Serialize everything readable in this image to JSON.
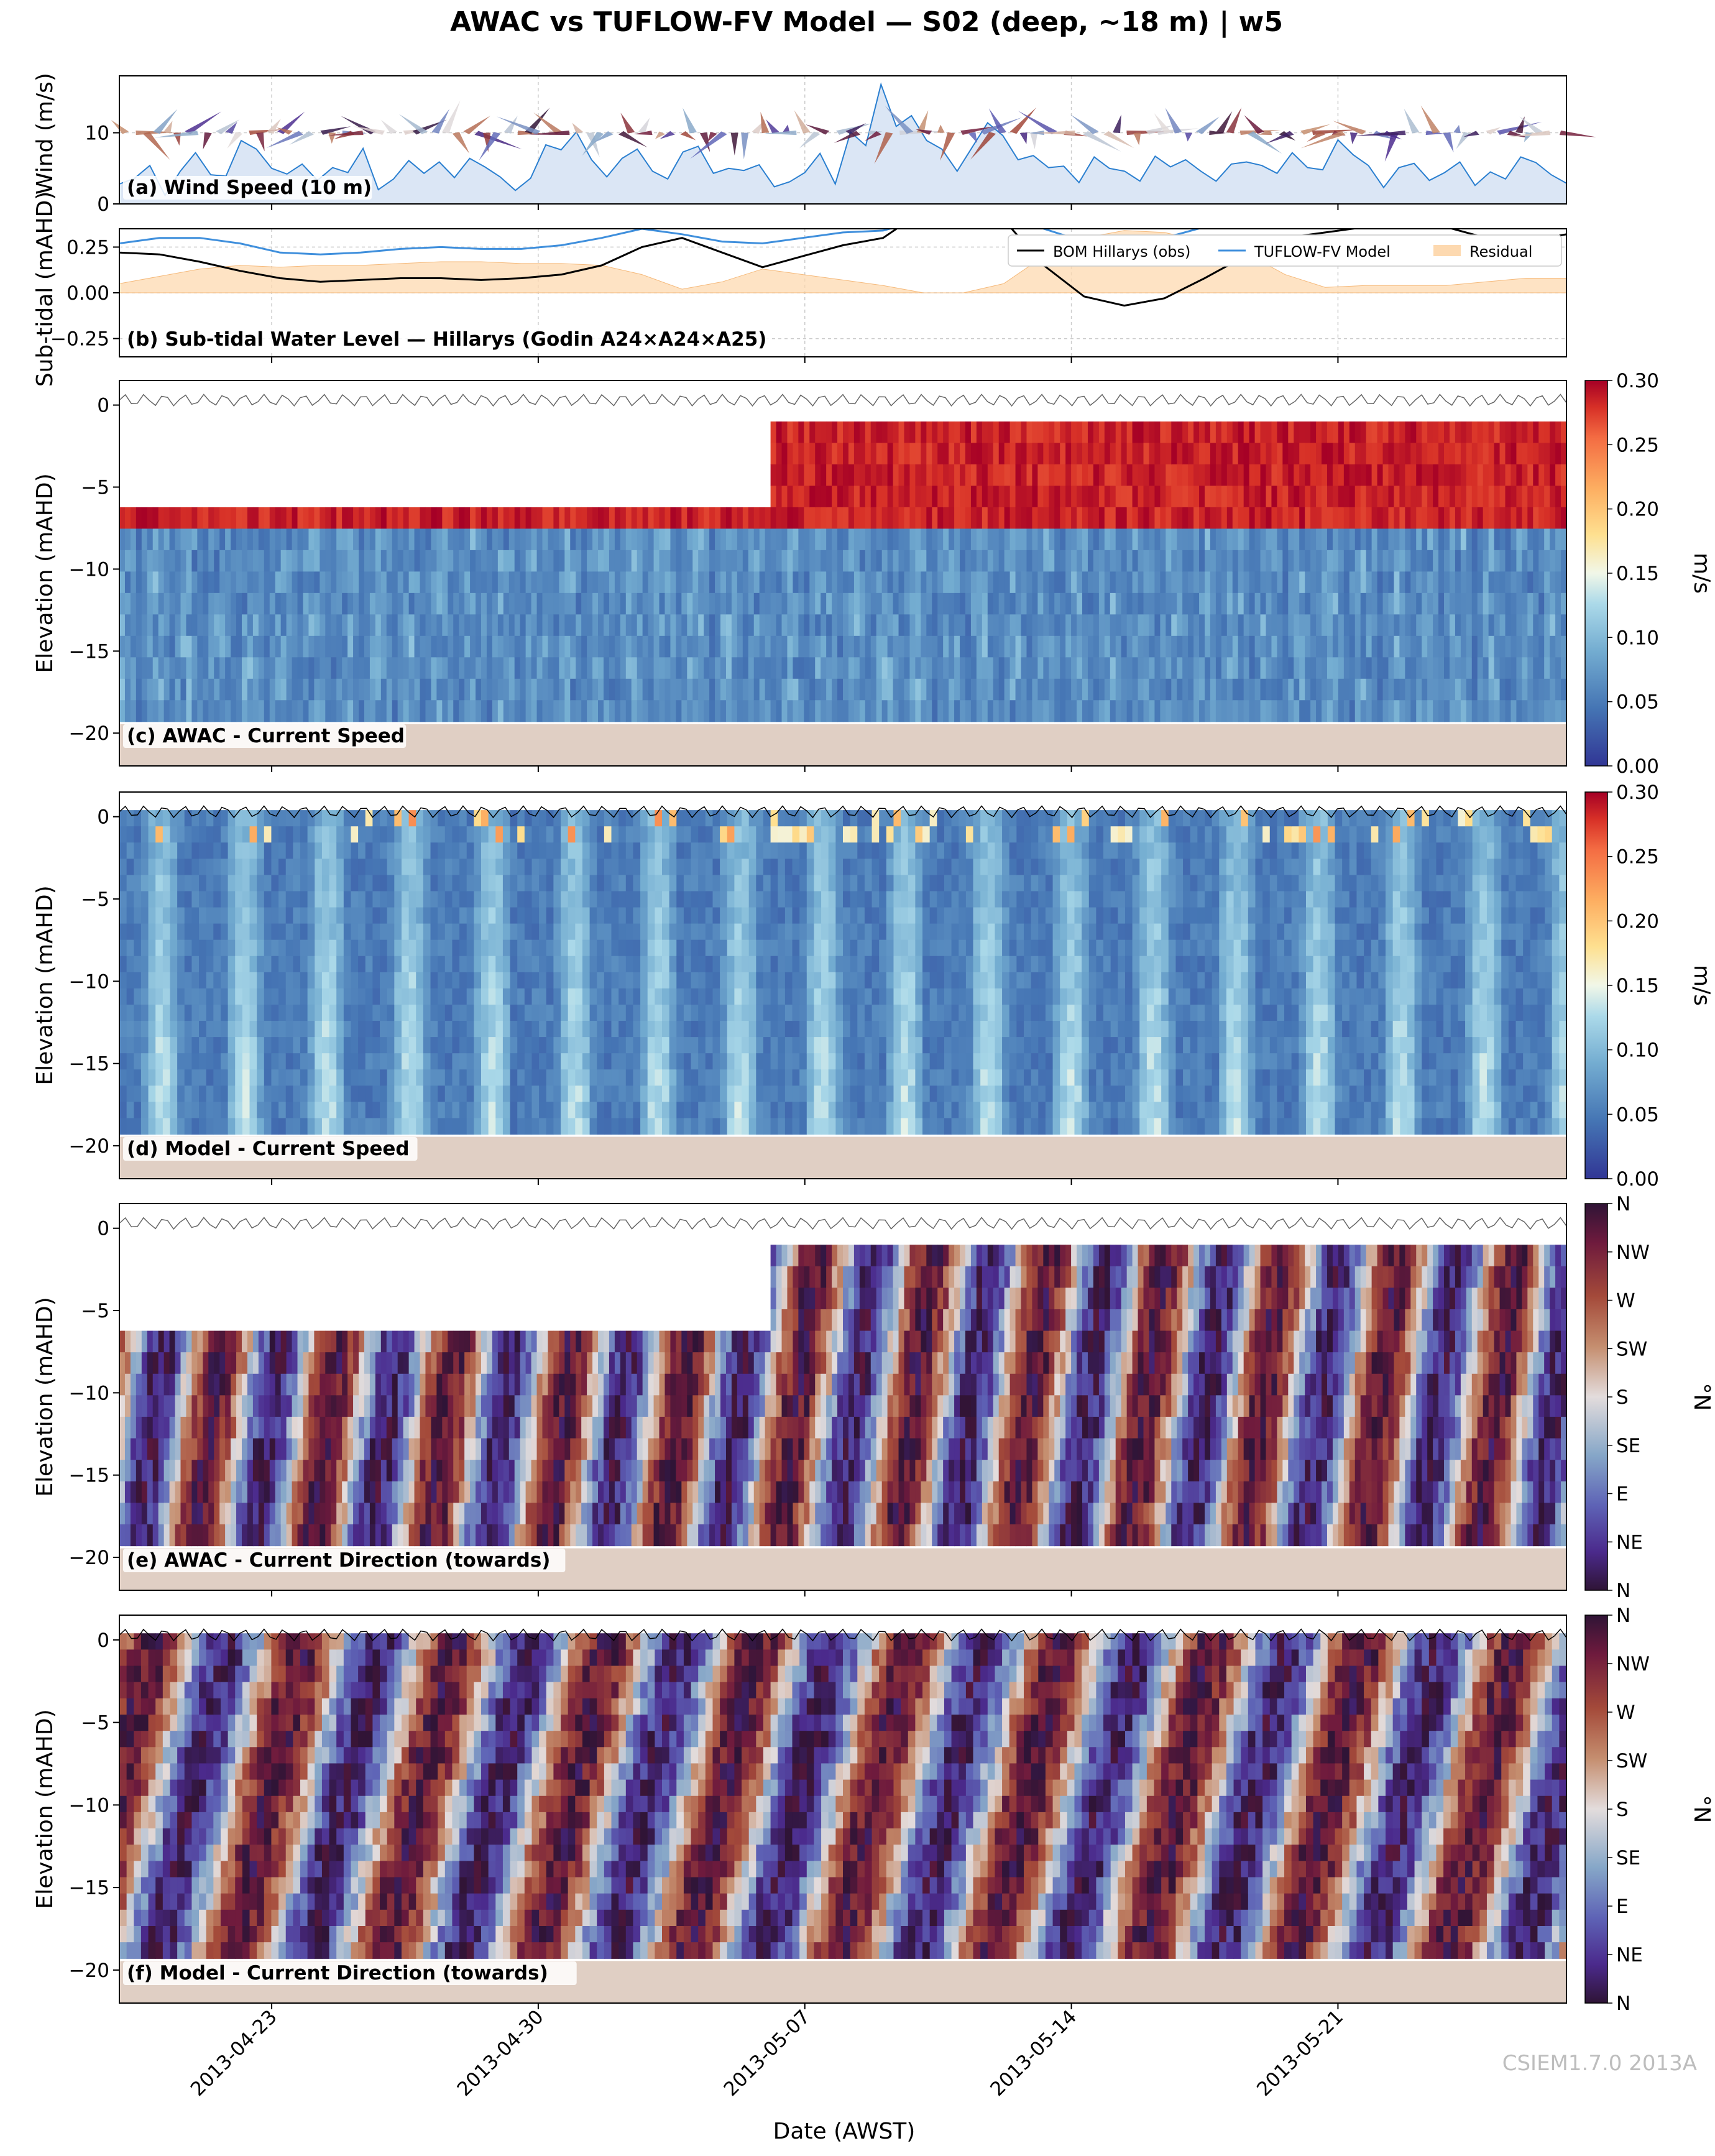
{
  "title": "AWAC vs TUFLOW-FV Model — S02 (deep, ~18 m) | w5",
  "xlabel": "Date (AWST)",
  "watermark": "CSIEM1.7.0 2013A",
  "x_ticks": [
    "2013-04-23",
    "2013-04-30",
    "2013-05-07",
    "2013-05-14",
    "2013-05-21"
  ],
  "colors": {
    "obs_line": "#000000",
    "model_line": "#3f8fdc",
    "residual_fill": "#fdd9b0",
    "wind_fill": "#dbe6f5",
    "wind_line": "#2a7fd0",
    "seabed": "#e0cfc4"
  },
  "chart_data": [
    {
      "type": "area",
      "panel_label": "(a) Wind Speed (10 m)",
      "ylabel": "Wind (m/s)",
      "yticks": [
        "0",
        "10"
      ],
      "ylim": [
        0,
        18
      ],
      "x_range": [
        "2013-04-19",
        "2013-05-27"
      ],
      "series": [
        {
          "values": [
            2.8,
            3.6,
            5.4,
            1.2,
            4.6,
            7.2,
            4.1,
            3.9,
            8.9,
            7.7,
            5.0,
            4.2,
            5.6,
            3.3,
            5.1,
            4.4,
            7.8,
            2.0,
            3.5,
            6.1,
            4.3,
            5.9,
            3.7,
            6.4,
            5.2,
            3.8,
            1.9,
            3.6,
            8.3,
            7.6,
            10.1,
            6.2,
            3.8,
            6.4,
            7.7,
            4.6,
            3.5,
            7.3,
            8.1,
            4.3,
            5.0,
            4.7,
            5.5,
            2.4,
            3.1,
            4.4,
            7.1,
            2.8,
            10.1,
            8.2,
            16.8,
            10.9,
            12.4,
            8.9,
            7.7,
            4.6,
            8.0,
            11.4,
            9.6,
            6.2,
            6.8,
            5.1,
            5.3,
            3.0,
            6.6,
            5.0,
            4.6,
            3.2,
            6.7,
            5.2,
            6.2,
            4.6,
            3.2,
            5.6,
            5.9,
            5.4,
            4.3,
            7.2,
            5.1,
            4.8,
            9.0,
            6.9,
            5.4,
            2.3,
            5.1,
            5.7,
            3.3,
            4.4,
            5.9,
            2.6,
            4.5,
            3.5,
            6.6,
            5.8,
            4.1,
            2.9
          ]
        }
      ]
    },
    {
      "type": "line",
      "panel_label": "(b) Sub-tidal Water Level — Hillarys (Godin A24×A24×A25)",
      "ylabel": "Sub-tidal (mAHD)",
      "yticks": [
        "0.25",
        "0.00",
        "−0.25"
      ],
      "ylim": [
        -0.35,
        0.35
      ],
      "x_range": [
        "2013-04-19",
        "2013-05-27"
      ],
      "legend": [
        "BOM Hillarys (obs)",
        "TUFLOW-FV Model",
        "Residual"
      ],
      "legend_position": "top-right",
      "series": [
        {
          "name": "BOM Hillarys (obs)",
          "values": [
            0.22,
            0.21,
            0.17,
            0.12,
            0.08,
            0.06,
            0.07,
            0.08,
            0.08,
            0.07,
            0.08,
            0.1,
            0.15,
            0.25,
            0.3,
            0.22,
            0.14,
            0.2,
            0.26,
            0.3,
            0.45,
            0.6,
            0.4,
            0.15,
            -0.02,
            -0.07,
            -0.03,
            0.08,
            0.2,
            0.3,
            0.33,
            0.36,
            0.4,
            0.36,
            0.3,
            0.28,
            0.32
          ]
        },
        {
          "name": "TUFLOW-FV Model",
          "values": [
            0.27,
            0.3,
            0.3,
            0.27,
            0.22,
            0.21,
            0.22,
            0.24,
            0.25,
            0.24,
            0.24,
            0.26,
            0.3,
            0.35,
            0.32,
            0.28,
            0.27,
            0.3,
            0.33,
            0.34,
            0.4,
            0.48,
            0.45,
            0.35,
            0.28,
            0.27,
            0.3,
            0.36,
            0.42,
            0.4,
            0.36,
            0.4,
            0.44,
            0.4,
            0.36,
            0.36,
            0.4
          ]
        },
        {
          "name": "Residual",
          "values": [
            0.05,
            0.09,
            0.13,
            0.15,
            0.14,
            0.15,
            0.15,
            0.16,
            0.17,
            0.17,
            0.16,
            0.16,
            0.15,
            0.1,
            0.02,
            0.06,
            0.13,
            0.1,
            0.07,
            0.04,
            0.0,
            0.0,
            0.05,
            0.2,
            0.3,
            0.34,
            0.33,
            0.28,
            0.22,
            0.1,
            0.03,
            0.04,
            0.04,
            0.04,
            0.06,
            0.08,
            0.08
          ]
        }
      ]
    },
    {
      "type": "heatmap",
      "panel_label": "(c) AWAC - Current Speed",
      "ylabel": "Elevation (mAHD)",
      "yticks": [
        "0",
        "−5",
        "−10",
        "−15",
        "−20"
      ],
      "ylim": [
        -22,
        1.5
      ],
      "seabed_elevation": -19.3,
      "colorbar_label": "m/s",
      "colorbar_ticks": [
        "0.30",
        "0.25",
        "0.20",
        "0.15",
        "0.10",
        "0.05",
        "0.00"
      ],
      "colorbar_range": [
        0,
        0.3
      ]
    },
    {
      "type": "heatmap",
      "panel_label": "(d) Model - Current Speed",
      "ylabel": "Elevation (mAHD)",
      "yticks": [
        "0",
        "−5",
        "−10",
        "−15",
        "−20"
      ],
      "ylim": [
        -22,
        1.5
      ],
      "seabed_elevation": -19.3,
      "colorbar_label": "m/s",
      "colorbar_ticks": [
        "0.30",
        "0.25",
        "0.20",
        "0.15",
        "0.10",
        "0.05",
        "0.00"
      ],
      "colorbar_range": [
        0,
        0.3
      ]
    },
    {
      "type": "heatmap",
      "panel_label": "(e) AWAC - Current Direction (towards)",
      "ylabel": "Elevation (mAHD)",
      "yticks": [
        "0",
        "−5",
        "−10",
        "−15",
        "−20"
      ],
      "ylim": [
        -22,
        1.5
      ],
      "seabed_elevation": -19.3,
      "colorbar_label": "°N",
      "colorbar_ticks": [
        "N",
        "NW",
        "W",
        "SW",
        "S",
        "SE",
        "E",
        "NE",
        "N"
      ],
      "colorbar_range": [
        0,
        360
      ]
    },
    {
      "type": "heatmap",
      "panel_label": "(f) Model - Current Direction (towards)",
      "ylabel": "Elevation (mAHD)",
      "yticks": [
        "0",
        "−5",
        "−10",
        "−15",
        "−20"
      ],
      "ylim": [
        -22,
        1.5
      ],
      "seabed_elevation": -19.3,
      "colorbar_label": "°N",
      "colorbar_ticks": [
        "N",
        "NW",
        "W",
        "SW",
        "S",
        "SE",
        "E",
        "NE",
        "N"
      ],
      "colorbar_range": [
        0,
        360
      ]
    }
  ]
}
